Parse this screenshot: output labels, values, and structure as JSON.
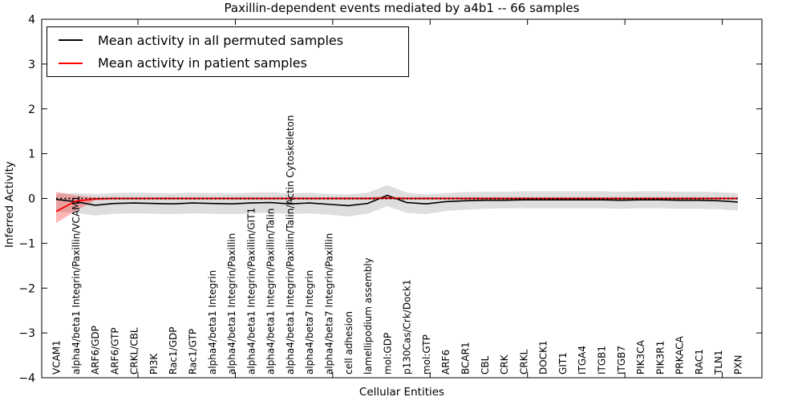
{
  "figure": {
    "title": "Paxillin-dependent events mediated by a4b1 -- 66 samples",
    "xlabel": "Cellular Entities",
    "ylabel": "Inferred Activity"
  },
  "legend": {
    "position": "upper left",
    "items": [
      {
        "label": "Mean activity in all permuted samples",
        "color": "#000000"
      },
      {
        "label": "Mean activity in patient samples",
        "color": "#ff0000"
      }
    ]
  },
  "chart_data": {
    "type": "line",
    "title": "Paxillin-dependent events mediated by a4b1 -- 66 samples",
    "xlabel": "Cellular Entities",
    "ylabel": "Inferred Activity",
    "ylim": [
      -4,
      4
    ],
    "yticks": [
      -4,
      -3,
      -2,
      -1,
      0,
      1,
      2,
      3,
      4
    ],
    "grid": false,
    "legend_position": "upper left",
    "zero_line": {
      "y": 0,
      "style": "dotted",
      "color": "#000000"
    },
    "categories": [
      "VCAM1",
      "alpha4/beta1 Integrin/Paxillin/VCAM1",
      "ARF6/GDP",
      "ARF6/GTP",
      "CRKL/CBL",
      "PI3K",
      "Rac1/GDP",
      "Rac1/GTP",
      "alpha4/beta1 Integrin",
      "alpha4/beta1 Integrin/Paxillin",
      "alpha4/beta1 Integrin/Paxillin/GIT1",
      "alpha4/beta1 Integrin/Paxillin/Talin",
      "alpha4/beta1 Integrin/Paxillin/Talin/Actin Cytoskeleton",
      "alpha4/beta7 Integrin",
      "alpha4/beta7 Integrin/Paxillin",
      "cell adhesion",
      "lamellipodium assembly",
      "mol:GDP",
      "p130Cas/Crk/Dock1",
      "mol:GTP",
      "ARF6",
      "BCAR1",
      "CBL",
      "CRK",
      "CRKL",
      "DOCK1",
      "GIT1",
      "ITGA4",
      "ITGB1",
      "ITGB7",
      "PIK3CA",
      "PIK3R1",
      "PRKACA",
      "RAC1",
      "TLN1",
      "PXN"
    ],
    "series": [
      {
        "name": "Mean activity in all permuted samples",
        "color": "#000000",
        "band_color": "rgba(0,0,0,0.13)",
        "values": [
          -0.02,
          -0.07,
          -0.15,
          -0.11,
          -0.1,
          -0.11,
          -0.12,
          -0.1,
          -0.11,
          -0.12,
          -0.1,
          -0.09,
          -0.12,
          -0.1,
          -0.13,
          -0.16,
          -0.11,
          0.07,
          -0.09,
          -0.12,
          -0.07,
          -0.05,
          -0.04,
          -0.04,
          -0.03,
          -0.03,
          -0.03,
          -0.03,
          -0.03,
          -0.04,
          -0.03,
          -0.03,
          -0.04,
          -0.04,
          -0.05,
          -0.08
        ],
        "band_upper": [
          0.1,
          0.12,
          0.1,
          0.12,
          0.13,
          0.12,
          0.11,
          0.13,
          0.12,
          0.11,
          0.13,
          0.14,
          0.11,
          0.13,
          0.1,
          0.09,
          0.13,
          0.3,
          0.13,
          0.09,
          0.12,
          0.14,
          0.15,
          0.15,
          0.16,
          0.16,
          0.16,
          0.16,
          0.16,
          0.15,
          0.16,
          0.16,
          0.15,
          0.15,
          0.14,
          0.12
        ],
        "band_lower": [
          -0.3,
          -0.32,
          -0.38,
          -0.34,
          -0.33,
          -0.34,
          -0.35,
          -0.33,
          -0.34,
          -0.35,
          -0.33,
          -0.32,
          -0.35,
          -0.33,
          -0.36,
          -0.4,
          -0.34,
          -0.17,
          -0.32,
          -0.35,
          -0.28,
          -0.25,
          -0.23,
          -0.22,
          -0.22,
          -0.22,
          -0.22,
          -0.22,
          -0.22,
          -0.23,
          -0.22,
          -0.22,
          -0.23,
          -0.23,
          -0.24,
          -0.27
        ]
      },
      {
        "name": "Mean activity in patient samples",
        "color": "#ff0000",
        "band_color": "rgba(255,0,0,0.28)",
        "values": [
          -0.29,
          -0.06,
          -0.01,
          0,
          0,
          0,
          0,
          0,
          0,
          0,
          0,
          0,
          0,
          0,
          0,
          0,
          0,
          0.01,
          0,
          0,
          0,
          0,
          0,
          0,
          0,
          0,
          0,
          0,
          0,
          0,
          0,
          0,
          0,
          0,
          0,
          0
        ],
        "band_upper": [
          0.15,
          0.07,
          0.03,
          0.03,
          0.03,
          0.03,
          0.03,
          0.03,
          0.03,
          0.03,
          0.03,
          0.03,
          0.03,
          0.03,
          0.03,
          0.03,
          0.03,
          0.04,
          0.03,
          0.03,
          0.03,
          0.03,
          0.03,
          0.03,
          0.03,
          0.03,
          0.03,
          0.03,
          0.03,
          0.03,
          0.03,
          0.03,
          0.03,
          0.03,
          0.03,
          0.03
        ],
        "band_lower": [
          -0.55,
          -0.28,
          -0.04,
          -0.03,
          -0.03,
          -0.03,
          -0.03,
          -0.03,
          -0.03,
          -0.03,
          -0.03,
          -0.03,
          -0.03,
          -0.03,
          -0.03,
          -0.03,
          -0.03,
          -0.02,
          -0.03,
          -0.03,
          -0.03,
          -0.03,
          -0.03,
          -0.03,
          -0.03,
          -0.03,
          -0.03,
          -0.03,
          -0.03,
          -0.03,
          -0.03,
          -0.03,
          -0.03,
          -0.03,
          -0.03,
          -0.03
        ]
      }
    ]
  }
}
